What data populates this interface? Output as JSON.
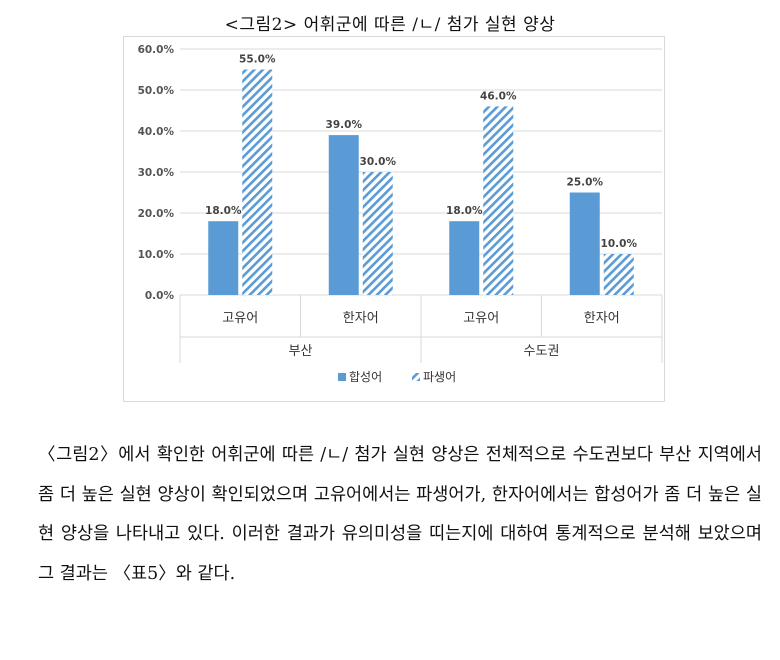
{
  "figure": {
    "title": "<그림2> 어휘군에 따른 /ㄴ/ 첨가 실현 양상"
  },
  "chart_data": {
    "type": "bar",
    "categories": [
      {
        "sub": "고유어",
        "group": "부산"
      },
      {
        "sub": "한자어",
        "group": "부산"
      },
      {
        "sub": "고유어",
        "group": "수도권"
      },
      {
        "sub": "한자어",
        "group": "수도권"
      }
    ],
    "groups": [
      "부산",
      "수도권"
    ],
    "series": [
      {
        "name": "합성어",
        "values": [
          18.0,
          39.0,
          18.0,
          25.0
        ],
        "labels": [
          "18.0%",
          "39.0%",
          "18.0%",
          "25.0%"
        ],
        "color": "#5b9bd5",
        "fill": "solid"
      },
      {
        "name": "파생어",
        "values": [
          55.0,
          30.0,
          46.0,
          10.0
        ],
        "labels": [
          "55.0%",
          "30.0%",
          "46.0%",
          "10.0%"
        ],
        "color": "#5b9bd5",
        "fill": "diagonal-hatch"
      }
    ],
    "ylim": [
      0,
      60
    ],
    "yticks": [
      "0.0%",
      "10.0%",
      "20.0%",
      "30.0%",
      "40.0%",
      "50.0%",
      "60.0%"
    ],
    "grid": true,
    "legend_position": "bottom"
  },
  "paragraph": {
    "text": "〈그림2〉에서 확인한 어휘군에 따른 /ㄴ/ 첨가 실현 양상은 전체적으로 수도권보다 부산 지역에서 좀 더 높은 실현 양상이 확인되었으며 고유어에서는 파생어가, 한자어에서는 합성어가 좀 더 높은 실현 양상을 나타내고 있다. 이러한 결과가 유의미성을 띠는지에 대하여 통계적으로 분석해 보았으며 그 결과는 〈표5〉와 같다."
  }
}
